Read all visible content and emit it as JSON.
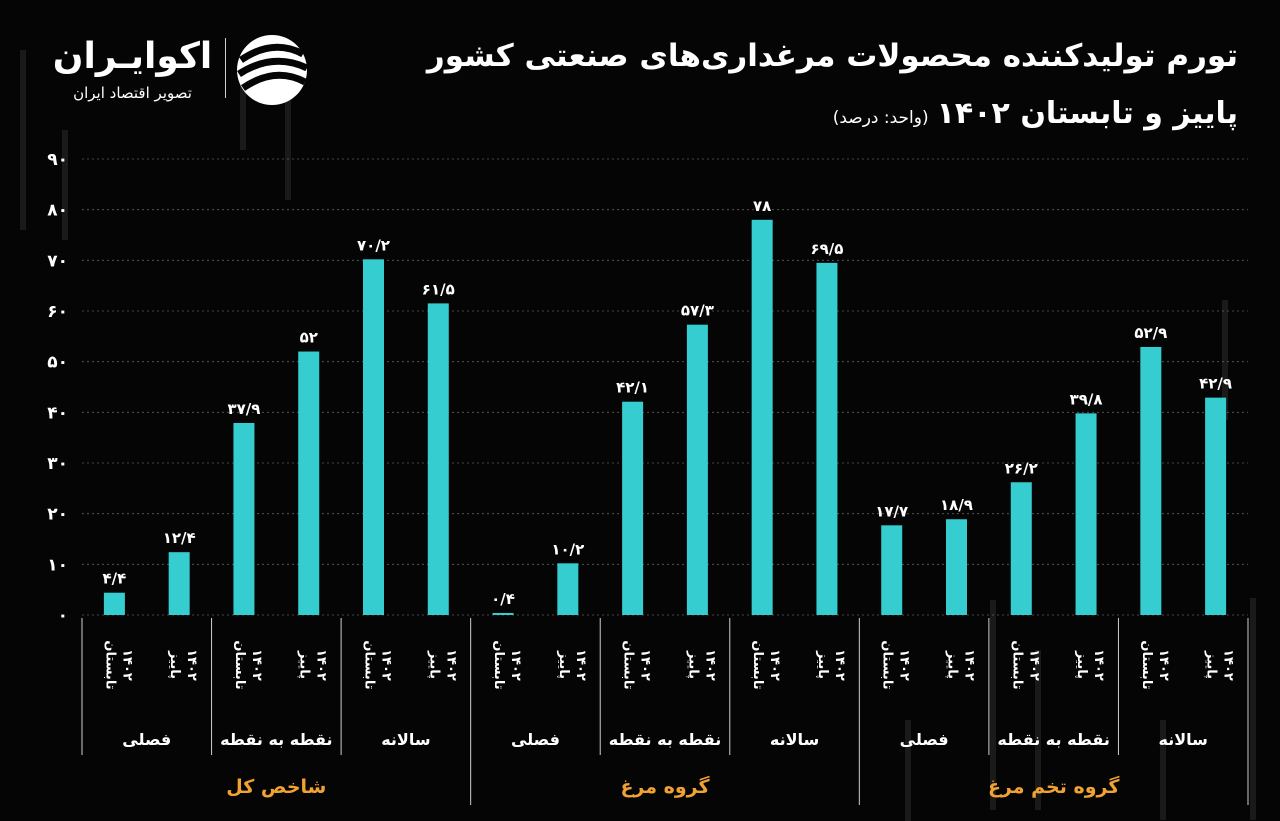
{
  "header": {
    "title": "تورم تولیدکننده محصولات مرغداری‌های صنعتی کشور",
    "subtitle": "پاییز و تابستان ۱۴۰۲",
    "unit_note": "(واحد: درصد)"
  },
  "brand": {
    "name": "اکوایـران",
    "tagline": "تصویر اقتصاد ایران",
    "mark_icon": "ecoiran-logo-icon"
  },
  "colors": {
    "background": "#050505",
    "bar": "#35cdd0",
    "text": "#ffffff",
    "group_label": "#f0a232",
    "grid": "#5f5f5f"
  },
  "chart_data": {
    "type": "bar",
    "title": "تورم تولیدکننده محصولات مرغداری‌های صنعتی کشور",
    "subtitle": "پاییز و تابستان ۱۴۰۲ (واحد: درصد)",
    "ylim": [
      0,
      90
    ],
    "y_ticks": [
      0,
      10,
      20,
      30,
      40,
      50,
      60,
      70,
      80,
      90
    ],
    "y_tick_labels": [
      "۰",
      "۱۰",
      "۲۰",
      "۳۰",
      "۴۰",
      "۵۰",
      "۶۰",
      "۷۰",
      "۸۰",
      "۹۰"
    ],
    "grid": "horizontal",
    "xlabel": "",
    "ylabel": "",
    "bars": [
      {
        "group": "شاخص کل",
        "sub": "فصلی",
        "period_line1": "تابستان",
        "period_line2": "۱۴۰۲",
        "value": 4.4,
        "label": "۴/۴"
      },
      {
        "group": "شاخص کل",
        "sub": "فصلی",
        "period_line1": "پاییز",
        "period_line2": "۱۴۰۲",
        "value": 12.4,
        "label": "۱۲/۴"
      },
      {
        "group": "شاخص کل",
        "sub": "نقطه به نقطه",
        "period_line1": "تابستان",
        "period_line2": "۱۴۰۲",
        "value": 37.9,
        "label": "۳۷/۹"
      },
      {
        "group": "شاخص کل",
        "sub": "نقطه به نقطه",
        "period_line1": "پاییز",
        "period_line2": "۱۴۰۲",
        "value": 52,
        "label": "۵۲"
      },
      {
        "group": "شاخص کل",
        "sub": "سالانه",
        "period_line1": "تابستان",
        "period_line2": "۱۴۰۲",
        "value": 70.2,
        "label": "۷۰/۲"
      },
      {
        "group": "شاخص کل",
        "sub": "سالانه",
        "period_line1": "پاییز",
        "period_line2": "۱۴۰۲",
        "value": 61.5,
        "label": "۶۱/۵"
      },
      {
        "group": "گروه مرغ",
        "sub": "فصلی",
        "period_line1": "تابستان",
        "period_line2": "۱۴۰۲",
        "value": 0.4,
        "label": "۰/۴"
      },
      {
        "group": "گروه مرغ",
        "sub": "فصلی",
        "period_line1": "پاییز",
        "period_line2": "۱۴۰۲",
        "value": 10.2,
        "label": "۱۰/۲"
      },
      {
        "group": "گروه مرغ",
        "sub": "نقطه به نقطه",
        "period_line1": "تابستان",
        "period_line2": "۱۴۰۲",
        "value": 42.1,
        "label": "۴۲/۱"
      },
      {
        "group": "گروه مرغ",
        "sub": "نقطه به نقطه",
        "period_line1": "پاییز",
        "period_line2": "۱۴۰۲",
        "value": 57.3,
        "label": "۵۷/۳"
      },
      {
        "group": "گروه مرغ",
        "sub": "سالانه",
        "period_line1": "تابستان",
        "period_line2": "۱۴۰۲",
        "value": 78,
        "label": "۷۸"
      },
      {
        "group": "گروه مرغ",
        "sub": "سالانه",
        "period_line1": "پاییز",
        "period_line2": "۱۴۰۲",
        "value": 69.5,
        "label": "۶۹/۵"
      },
      {
        "group": "گروه تخم مرغ",
        "sub": "فصلی",
        "period_line1": "تابستان",
        "period_line2": "۱۴۰۲",
        "value": 17.7,
        "label": "۱۷/۷"
      },
      {
        "group": "گروه تخم مرغ",
        "sub": "فصلی",
        "period_line1": "پاییز",
        "period_line2": "۱۴۰۲",
        "value": 18.9,
        "label": "۱۸/۹"
      },
      {
        "group": "گروه تخم مرغ",
        "sub": "نقطه به نقطه",
        "period_line1": "تابستان",
        "period_line2": "۱۴۰۲",
        "value": 26.2,
        "label": "۲۶/۲"
      },
      {
        "group": "گروه تخم مرغ",
        "sub": "نقطه به نقطه",
        "period_line1": "پاییز",
        "period_line2": "۱۴۰۲",
        "value": 39.8,
        "label": "۳۹/۸"
      },
      {
        "group": "گروه تخم مرغ",
        "sub": "سالانه",
        "period_line1": "تابستان",
        "period_line2": "۱۴۰۲",
        "value": 52.9,
        "label": "۵۲/۹"
      },
      {
        "group": "گروه تخم مرغ",
        "sub": "سالانه",
        "period_line1": "پاییز",
        "period_line2": "۱۴۰۲",
        "value": 42.9,
        "label": "۴۲/۹"
      }
    ],
    "subgroups": [
      {
        "label": "فصلی",
        "group": "شاخص کل"
      },
      {
        "label": "نقطه به نقطه",
        "group": "شاخص کل"
      },
      {
        "label": "سالانه",
        "group": "شاخص کل"
      },
      {
        "label": "فصلی",
        "group": "گروه مرغ"
      },
      {
        "label": "نقطه به نقطه",
        "group": "گروه مرغ"
      },
      {
        "label": "سالانه",
        "group": "گروه مرغ"
      },
      {
        "label": "فصلی",
        "group": "گروه تخم مرغ"
      },
      {
        "label": "نقطه به نقطه",
        "group": "گروه تخم مرغ"
      },
      {
        "label": "سالانه",
        "group": "گروه تخم مرغ"
      }
    ],
    "groups": [
      "شاخص کل",
      "گروه مرغ",
      "گروه تخم مرغ"
    ]
  }
}
